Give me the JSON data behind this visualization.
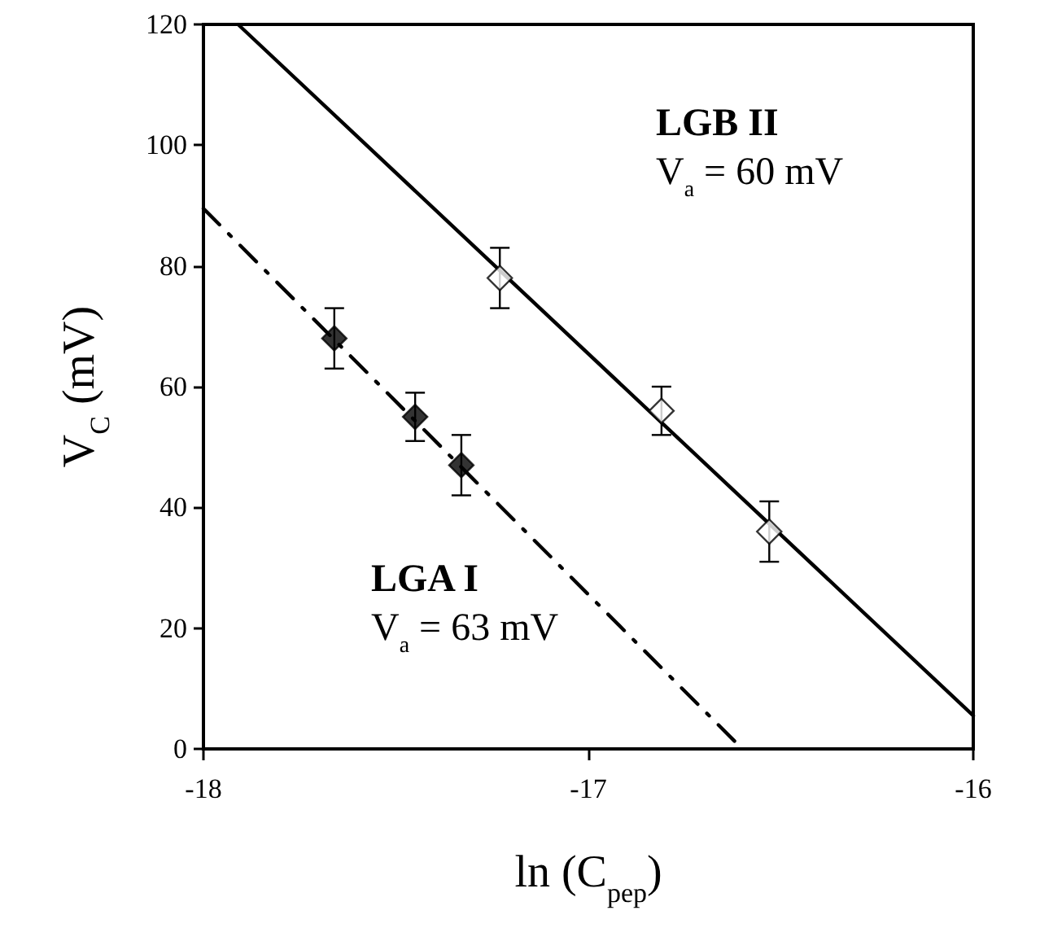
{
  "chart_data": {
    "type": "scatter",
    "xlabel": "ln (C$_{pep}$)",
    "ylabel": "V$_{C}$ (mV)",
    "xlim": [
      -18,
      -16
    ],
    "xticks": [
      -18,
      -17,
      -16
    ],
    "ylim": [
      0,
      120
    ],
    "yticks": [
      0,
      20,
      40,
      60,
      80,
      100,
      120
    ],
    "grid": false,
    "marker": "diamond",
    "series": [
      {
        "color": "#000000",
        "x": [
          -17.66,
          -17.45,
          -17.33
        ],
        "values": [
          68,
          55,
          47
        ],
        "errors": [
          5,
          4,
          5
        ]
      },
      {
        "color": "#ffffff",
        "x": [
          -17.23,
          -16.81,
          -16.53
        ],
        "values": [
          78,
          56,
          36
        ],
        "errors": [
          5,
          4,
          5
        ]
      },
      {
        "type": "line",
        "color": "#000000",
        "line_style": "dashed",
        "marker": "none",
        "x": [
          -18,
          -16.6
        ],
        "values": [
          89.5,
          0
        ]
      },
      {
        "type": "line",
        "color": "#000000",
        "line_style": "solid",
        "marker": "none",
        "x": [
          -17.91,
          -16
        ],
        "values": [
          120,
          5.5
        ]
      }
    ],
    "annotations": [
      "LGB II",
      "V$_{a}$ = 60 mV",
      "LGA I",
      "V$_{a}$ = 63 mV"
    ]
  }
}
